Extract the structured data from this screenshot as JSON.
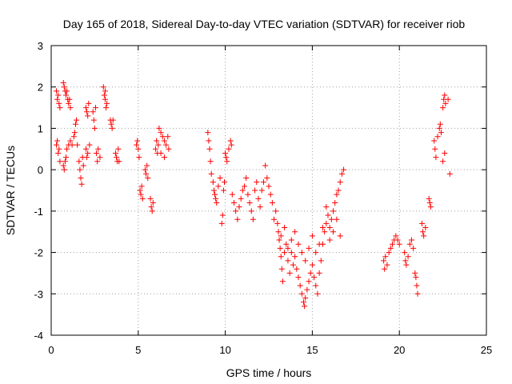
{
  "chart_data": {
    "type": "scatter",
    "title": "Day 165 of 2018, Sidereal Day-to-day VTEC variation (SDTVAR) for receiver riob",
    "xlabel": "GPS time / hours",
    "ylabel": "SDTVAR / TECUs",
    "xlim": [
      0,
      25
    ],
    "ylim": [
      -4,
      3
    ],
    "xticks": [
      0,
      5,
      10,
      15,
      20,
      25
    ],
    "yticks": [
      -4,
      -3,
      -2,
      -1,
      0,
      1,
      2,
      3
    ],
    "xtick_labels": [
      "0",
      "5",
      "10",
      "15",
      "20",
      "25"
    ],
    "ytick_labels": [
      "-4",
      "-3",
      "-2",
      "-1",
      "0",
      "1",
      "2",
      "3"
    ],
    "grid": true,
    "marker": "+",
    "color": "#ff0000",
    "series": [
      {
        "name": "SDTVAR",
        "points": [
          [
            0.3,
            1.9
          ],
          [
            0.35,
            1.7
          ],
          [
            0.4,
            1.8
          ],
          [
            0.45,
            1.6
          ],
          [
            0.5,
            1.5
          ],
          [
            0.3,
            0.6
          ],
          [
            0.35,
            0.7
          ],
          [
            0.4,
            0.4
          ],
          [
            0.45,
            0.5
          ],
          [
            0.5,
            0.2
          ],
          [
            0.7,
            2.1
          ],
          [
            0.75,
            2.0
          ],
          [
            0.8,
            1.9
          ],
          [
            0.85,
            1.8
          ],
          [
            0.9,
            1.9
          ],
          [
            0.95,
            1.7
          ],
          [
            1.0,
            1.6
          ],
          [
            1.05,
            1.7
          ],
          [
            1.1,
            1.5
          ],
          [
            0.7,
            0.1
          ],
          [
            0.75,
            0.0
          ],
          [
            0.8,
            0.2
          ],
          [
            0.85,
            0.3
          ],
          [
            0.9,
            0.5
          ],
          [
            1.0,
            0.6
          ],
          [
            1.1,
            0.7
          ],
          [
            1.2,
            0.6
          ],
          [
            1.3,
            0.8
          ],
          [
            1.35,
            0.9
          ],
          [
            1.4,
            1.1
          ],
          [
            1.45,
            1.2
          ],
          [
            1.5,
            0.6
          ],
          [
            1.6,
            0.2
          ],
          [
            1.65,
            0.0
          ],
          [
            1.7,
            -0.2
          ],
          [
            1.75,
            -0.35
          ],
          [
            1.8,
            0.3
          ],
          [
            1.85,
            0.1
          ],
          [
            2.0,
            1.5
          ],
          [
            2.05,
            1.4
          ],
          [
            2.1,
            1.3
          ],
          [
            2.15,
            1.6
          ],
          [
            2.0,
            0.5
          ],
          [
            2.05,
            0.3
          ],
          [
            2.1,
            0.4
          ],
          [
            2.2,
            0.6
          ],
          [
            2.4,
            1.4
          ],
          [
            2.45,
            1.2
          ],
          [
            2.5,
            1.0
          ],
          [
            2.55,
            1.5
          ],
          [
            2.6,
            0.4
          ],
          [
            2.65,
            0.2
          ],
          [
            2.7,
            0.5
          ],
          [
            2.8,
            0.3
          ],
          [
            3.0,
            2.0
          ],
          [
            3.05,
            1.8
          ],
          [
            3.1,
            1.7
          ],
          [
            3.15,
            1.5
          ],
          [
            3.2,
            1.6
          ],
          [
            3.1,
            1.9
          ],
          [
            3.4,
            1.2
          ],
          [
            3.45,
            1.1
          ],
          [
            3.5,
            1.0
          ],
          [
            3.55,
            1.2
          ],
          [
            3.7,
            0.4
          ],
          [
            3.75,
            0.3
          ],
          [
            3.8,
            0.2
          ],
          [
            3.85,
            0.5
          ],
          [
            3.9,
            0.2
          ],
          [
            4.9,
            0.6
          ],
          [
            4.95,
            0.7
          ],
          [
            5.0,
            0.5
          ],
          [
            5.05,
            0.3
          ],
          [
            5.1,
            -0.5
          ],
          [
            5.15,
            -0.6
          ],
          [
            5.2,
            -0.4
          ],
          [
            5.25,
            -0.7
          ],
          [
            5.4,
            0.0
          ],
          [
            5.45,
            -0.1
          ],
          [
            5.5,
            0.1
          ],
          [
            5.55,
            -0.2
          ],
          [
            5.7,
            -0.7
          ],
          [
            5.75,
            -0.9
          ],
          [
            5.8,
            -1.0
          ],
          [
            5.85,
            -0.8
          ],
          [
            6.0,
            0.5
          ],
          [
            6.05,
            0.7
          ],
          [
            6.1,
            0.4
          ],
          [
            6.15,
            0.6
          ],
          [
            6.2,
            1.0
          ],
          [
            6.3,
            0.9
          ],
          [
            6.4,
            0.8
          ],
          [
            6.5,
            0.7
          ],
          [
            6.6,
            0.6
          ],
          [
            6.7,
            0.8
          ],
          [
            6.75,
            0.5
          ],
          [
            6.3,
            0.4
          ],
          [
            6.5,
            0.3
          ],
          [
            9.0,
            0.9
          ],
          [
            9.05,
            0.7
          ],
          [
            9.1,
            0.5
          ],
          [
            9.15,
            0.2
          ],
          [
            9.2,
            -0.1
          ],
          [
            9.3,
            -0.3
          ],
          [
            9.35,
            -0.5
          ],
          [
            9.4,
            -0.6
          ],
          [
            9.45,
            -0.7
          ],
          [
            9.5,
            -0.8
          ],
          [
            9.6,
            -0.4
          ],
          [
            9.7,
            -0.2
          ],
          [
            9.8,
            -1.3
          ],
          [
            9.85,
            -1.1
          ],
          [
            9.9,
            -0.5
          ],
          [
            9.95,
            -0.3
          ],
          [
            10.0,
            0.4
          ],
          [
            10.05,
            0.3
          ],
          [
            10.1,
            0.2
          ],
          [
            10.2,
            0.5
          ],
          [
            10.3,
            0.7
          ],
          [
            10.35,
            0.6
          ],
          [
            10.4,
            -0.6
          ],
          [
            10.5,
            -0.8
          ],
          [
            10.6,
            -1.0
          ],
          [
            10.7,
            -1.2
          ],
          [
            10.8,
            -0.9
          ],
          [
            10.9,
            -0.7
          ],
          [
            11.0,
            -0.5
          ],
          [
            11.1,
            -0.4
          ],
          [
            11.2,
            -0.2
          ],
          [
            11.3,
            -0.6
          ],
          [
            11.4,
            -0.8
          ],
          [
            11.5,
            -1.0
          ],
          [
            11.6,
            -1.2
          ],
          [
            11.7,
            -0.5
          ],
          [
            11.8,
            -0.3
          ],
          [
            11.9,
            -0.7
          ],
          [
            12.0,
            -0.9
          ],
          [
            12.1,
            -0.5
          ],
          [
            12.2,
            -0.3
          ],
          [
            12.3,
            0.1
          ],
          [
            12.4,
            -0.2
          ],
          [
            12.5,
            -0.4
          ],
          [
            12.6,
            -0.6
          ],
          [
            12.7,
            -0.8
          ],
          [
            12.8,
            -1.2
          ],
          [
            12.9,
            -1.0
          ],
          [
            13.0,
            -1.3
          ],
          [
            13.05,
            -1.5
          ],
          [
            13.1,
            -1.7
          ],
          [
            13.15,
            -1.9
          ],
          [
            13.2,
            -2.1
          ],
          [
            13.25,
            -2.4
          ],
          [
            13.3,
            -2.7
          ],
          [
            13.4,
            -2.0
          ],
          [
            13.5,
            -1.8
          ],
          [
            13.6,
            -2.2
          ],
          [
            13.7,
            -2.5
          ],
          [
            13.8,
            -2.0
          ],
          [
            13.9,
            -2.3
          ],
          [
            14.0,
            -2.1
          ],
          [
            14.1,
            -2.4
          ],
          [
            14.2,
            -2.6
          ],
          [
            14.3,
            -2.8
          ],
          [
            14.4,
            -3.0
          ],
          [
            14.5,
            -3.2
          ],
          [
            14.55,
            -3.3
          ],
          [
            14.6,
            -3.1
          ],
          [
            14.7,
            -2.9
          ],
          [
            14.8,
            -2.7
          ],
          [
            14.9,
            -2.5
          ],
          [
            15.0,
            -2.3
          ],
          [
            15.1,
            -2.6
          ],
          [
            15.2,
            -2.8
          ],
          [
            15.3,
            -3.0
          ],
          [
            15.4,
            -2.5
          ],
          [
            15.5,
            -2.2
          ],
          [
            15.6,
            -1.8
          ],
          [
            15.7,
            -1.5
          ],
          [
            15.8,
            -1.3
          ],
          [
            15.9,
            -1.1
          ],
          [
            16.0,
            -1.4
          ],
          [
            16.1,
            -1.2
          ],
          [
            16.2,
            -1.0
          ],
          [
            16.3,
            -0.8
          ],
          [
            16.4,
            -0.6
          ],
          [
            16.5,
            -0.5
          ],
          [
            16.6,
            -0.3
          ],
          [
            16.7,
            -0.1
          ],
          [
            16.8,
            0.0
          ],
          [
            13.2,
            -1.6
          ],
          [
            13.4,
            -1.4
          ],
          [
            13.6,
            -1.9
          ],
          [
            13.8,
            -1.7
          ],
          [
            14.0,
            -1.5
          ],
          [
            14.2,
            -1.8
          ],
          [
            14.4,
            -2.0
          ],
          [
            14.6,
            -2.2
          ],
          [
            14.8,
            -1.9
          ],
          [
            15.0,
            -1.6
          ],
          [
            15.2,
            -2.0
          ],
          [
            15.4,
            -1.8
          ],
          [
            15.6,
            -1.4
          ],
          [
            15.8,
            -0.9
          ],
          [
            16.0,
            -1.7
          ],
          [
            16.2,
            -1.5
          ],
          [
            16.4,
            -1.2
          ],
          [
            16.6,
            -1.6
          ],
          [
            19.1,
            -2.2
          ],
          [
            19.15,
            -2.4
          ],
          [
            19.2,
            -2.1
          ],
          [
            19.3,
            -2.3
          ],
          [
            19.4,
            -2.0
          ],
          [
            19.5,
            -1.9
          ],
          [
            19.6,
            -1.8
          ],
          [
            19.7,
            -1.7
          ],
          [
            19.8,
            -1.6
          ],
          [
            19.9,
            -1.7
          ],
          [
            20.0,
            -1.8
          ],
          [
            20.3,
            -2.0
          ],
          [
            20.35,
            -2.2
          ],
          [
            20.4,
            -2.3
          ],
          [
            20.5,
            -2.1
          ],
          [
            20.6,
            -1.8
          ],
          [
            20.7,
            -1.7
          ],
          [
            20.8,
            -1.9
          ],
          [
            20.9,
            -2.5
          ],
          [
            20.95,
            -2.6
          ],
          [
            21.0,
            -2.8
          ],
          [
            21.05,
            -3.0
          ],
          [
            21.3,
            -1.3
          ],
          [
            21.35,
            -1.5
          ],
          [
            21.4,
            -1.6
          ],
          [
            21.5,
            -1.4
          ],
          [
            21.7,
            -0.7
          ],
          [
            21.75,
            -0.8
          ],
          [
            21.8,
            -0.9
          ],
          [
            22.0,
            0.7
          ],
          [
            22.05,
            0.5
          ],
          [
            22.1,
            0.3
          ],
          [
            22.2,
            0.8
          ],
          [
            22.3,
            1.0
          ],
          [
            22.35,
            1.1
          ],
          [
            22.4,
            0.9
          ],
          [
            22.5,
            1.5
          ],
          [
            22.55,
            1.7
          ],
          [
            22.6,
            1.8
          ],
          [
            22.65,
            1.6
          ],
          [
            22.5,
            0.2
          ],
          [
            22.6,
            0.4
          ],
          [
            22.8,
            1.7
          ],
          [
            22.9,
            -0.1
          ]
        ]
      }
    ]
  }
}
